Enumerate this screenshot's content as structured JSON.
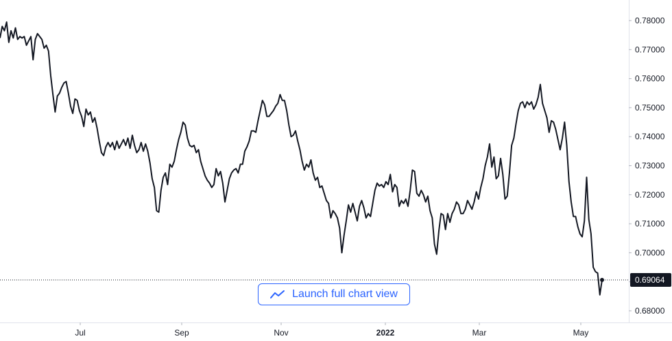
{
  "chart_data": {
    "type": "line",
    "series": [
      {
        "values": [
          0.774,
          0.778,
          0.7765,
          0.7795,
          0.7725,
          0.7765,
          0.774,
          0.7775,
          0.7735,
          0.7745,
          0.774,
          0.7745,
          0.7715,
          0.773,
          0.7745,
          0.7665,
          0.7735,
          0.7755,
          0.7745,
          0.7735,
          0.7705,
          0.7715,
          0.7695,
          0.761,
          0.7545,
          0.7485,
          0.754,
          0.755,
          0.757,
          0.7585,
          0.759,
          0.755,
          0.7505,
          0.748,
          0.753,
          0.7525,
          0.749,
          0.747,
          0.7435,
          0.7495,
          0.7475,
          0.7485,
          0.745,
          0.7465,
          0.743,
          0.7385,
          0.7345,
          0.7335,
          0.7365,
          0.738,
          0.7365,
          0.738,
          0.7355,
          0.7385,
          0.736,
          0.7375,
          0.739,
          0.737,
          0.7395,
          0.736,
          0.7405,
          0.737,
          0.7345,
          0.7355,
          0.738,
          0.735,
          0.7375,
          0.735,
          0.731,
          0.7255,
          0.7225,
          0.7145,
          0.714,
          0.7215,
          0.726,
          0.7275,
          0.7235,
          0.7305,
          0.7295,
          0.7315,
          0.7355,
          0.739,
          0.7415,
          0.745,
          0.744,
          0.7395,
          0.737,
          0.7365,
          0.737,
          0.7345,
          0.7355,
          0.7315,
          0.729,
          0.7265,
          0.725,
          0.724,
          0.7225,
          0.7235,
          0.729,
          0.7265,
          0.728,
          0.724,
          0.7175,
          0.7215,
          0.7255,
          0.7275,
          0.7285,
          0.729,
          0.7275,
          0.7305,
          0.7305,
          0.735,
          0.7365,
          0.7385,
          0.742,
          0.742,
          0.7415,
          0.7455,
          0.749,
          0.7525,
          0.751,
          0.747,
          0.747,
          0.748,
          0.749,
          0.7505,
          0.7515,
          0.7545,
          0.7525,
          0.7525,
          0.749,
          0.744,
          0.74,
          0.7405,
          0.742,
          0.7385,
          0.7355,
          0.7315,
          0.7285,
          0.7305,
          0.7295,
          0.732,
          0.7275,
          0.725,
          0.726,
          0.7225,
          0.723,
          0.7205,
          0.718,
          0.717,
          0.712,
          0.7145,
          0.7135,
          0.712,
          0.7085,
          0.7,
          0.706,
          0.711,
          0.7165,
          0.714,
          0.717,
          0.714,
          0.711,
          0.716,
          0.718,
          0.7155,
          0.712,
          0.7135,
          0.7125,
          0.717,
          0.7215,
          0.724,
          0.723,
          0.7235,
          0.7225,
          0.7245,
          0.7235,
          0.727,
          0.721,
          0.7235,
          0.7225,
          0.716,
          0.718,
          0.717,
          0.7185,
          0.716,
          0.7215,
          0.7285,
          0.728,
          0.7205,
          0.7195,
          0.7215,
          0.72,
          0.7175,
          0.7195,
          0.7145,
          0.712,
          0.703,
          0.6995,
          0.7075,
          0.7135,
          0.713,
          0.708,
          0.7135,
          0.7105,
          0.7135,
          0.715,
          0.7175,
          0.7165,
          0.7135,
          0.7135,
          0.715,
          0.718,
          0.7165,
          0.715,
          0.7175,
          0.721,
          0.7185,
          0.7225,
          0.7255,
          0.73,
          0.733,
          0.7375,
          0.7295,
          0.733,
          0.7255,
          0.7265,
          0.7325,
          0.727,
          0.7185,
          0.7195,
          0.7275,
          0.737,
          0.7395,
          0.7445,
          0.749,
          0.7515,
          0.752,
          0.75,
          0.752,
          0.751,
          0.752,
          0.7495,
          0.751,
          0.7535,
          0.758,
          0.7515,
          0.749,
          0.7465,
          0.7415,
          0.7455,
          0.745,
          0.7425,
          0.739,
          0.7355,
          0.7395,
          0.745,
          0.737,
          0.7245,
          0.7175,
          0.7125,
          0.7125,
          0.709,
          0.7065,
          0.7055,
          0.711,
          0.726,
          0.7115,
          0.7065,
          0.695,
          0.6935,
          0.693,
          0.6855,
          0.6906
        ]
      }
    ],
    "x_ticks": [
      "Jul",
      "Sep",
      "Nov",
      "2022",
      "Mar",
      "May"
    ],
    "y_ticks": [
      "0.78000",
      "0.77000",
      "0.76000",
      "0.75000",
      "0.74000",
      "0.73000",
      "0.72000",
      "0.71000",
      "0.70000",
      "0.69000",
      "0.68000"
    ],
    "ylim": [
      0.678,
      0.7825
    ],
    "last_value": 0.69064,
    "last_value_label": "0.69064",
    "grid": false,
    "line_color": "#131722",
    "price_label_bg": "#131722"
  },
  "button": {
    "label": "Launch full chart view",
    "icon": "chart-line-icon",
    "color": "#2962ff"
  }
}
